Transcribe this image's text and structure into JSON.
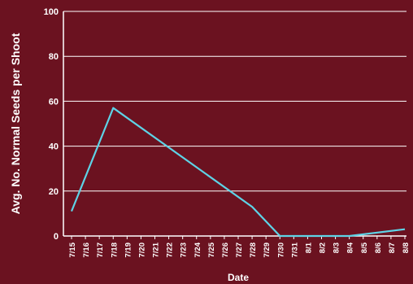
{
  "chart_data": {
    "type": "line",
    "title": "",
    "xlabel": "Date",
    "ylabel": "Avg. No. Normal Seeds per Shoot",
    "ylim": [
      0,
      100
    ],
    "yticks": [
      0,
      20,
      40,
      60,
      80,
      100
    ],
    "grid": true,
    "x": [
      "7/15",
      "7/16",
      "7/17",
      "7/18",
      "7/19",
      "7/20",
      "7/21",
      "7/22",
      "7/23",
      "7/24",
      "7/25",
      "7/26",
      "7/27",
      "7/28",
      "7/29",
      "7/30",
      "7/31",
      "8/1",
      "8/2",
      "8/3",
      "8/4",
      "8/5",
      "8/6",
      "8/7",
      "8/8"
    ],
    "series": [
      {
        "points": [
          {
            "x": "7/15",
            "y": 11
          },
          {
            "x": "7/18",
            "y": 57
          },
          {
            "x": "7/28",
            "y": 13
          },
          {
            "x": "7/30",
            "y": 0
          },
          {
            "x": "8/4",
            "y": 0
          },
          {
            "x": "8/8",
            "y": 3
          }
        ]
      }
    ],
    "colors": {
      "background": "#6b1220",
      "line": "#5ed3e6",
      "grid": "#ffffff",
      "text": "#ffffff"
    }
  }
}
